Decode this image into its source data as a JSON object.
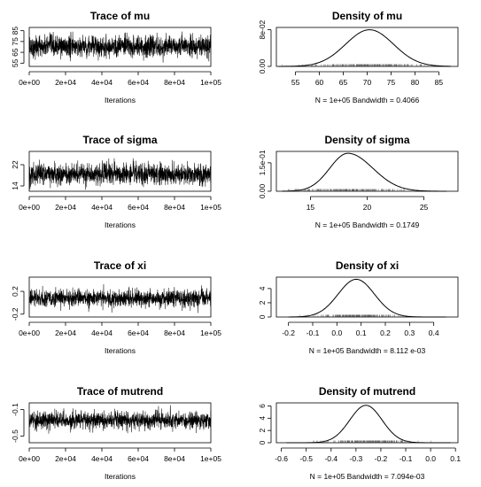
{
  "chart_data": [
    {
      "type": "line",
      "title": "Trace of mu",
      "xlabel": "Iterations",
      "ylabel": "",
      "xlim": [
        0,
        100000
      ],
      "ylim": [
        52,
        88
      ],
      "x_ticks": [
        0,
        20000,
        40000,
        60000,
        80000,
        100000
      ],
      "x_tick_labels": [
        "0e+00",
        "2e+04",
        "4e+04",
        "6e+04",
        "8e+04",
        "1e+05"
      ],
      "y_ticks": [
        55,
        65,
        75,
        85
      ],
      "y_tick_labels": [
        "55",
        "65",
        "75",
        "85"
      ],
      "series": [
        {
          "mean": 70.5,
          "sd": 5.0,
          "samples": 100000
        }
      ]
    },
    {
      "type": "line",
      "title": "Density of mu",
      "xlabel": "N = 1e+05    Bandwidth = 0.4066",
      "ylabel": "",
      "xlim": [
        51,
        89
      ],
      "ylim": [
        0,
        0.085
      ],
      "x_ticks": [
        55,
        60,
        65,
        70,
        75,
        80,
        85
      ],
      "x_tick_labels": [
        "55",
        "60",
        "65",
        "70",
        "75",
        "80",
        "85"
      ],
      "y_ticks": [
        0,
        0.08
      ],
      "y_tick_labels": [
        "0.00",
        "8e-02"
      ],
      "series": [
        {
          "mean": 70.5,
          "sd": 5.0,
          "peak": 0.08,
          "support": [
            51.5,
            87.5
          ]
        }
      ]
    },
    {
      "type": "line",
      "title": "Trace of sigma",
      "xlabel": "Iterations",
      "ylabel": "",
      "xlim": [
        0,
        100000
      ],
      "ylim": [
        12,
        27
      ],
      "x_ticks": [
        0,
        20000,
        40000,
        60000,
        80000,
        100000
      ],
      "x_tick_labels": [
        "0e+00",
        "2e+04",
        "4e+04",
        "6e+04",
        "8e+04",
        "1e+05"
      ],
      "y_ticks": [
        14,
        22
      ],
      "y_tick_labels": [
        "14",
        "22"
      ],
      "series": [
        {
          "mean": 18.5,
          "sd": 2.0,
          "samples": 100000
        }
      ]
    },
    {
      "type": "line",
      "title": "Density of sigma",
      "xlabel": "N = 1e+05    Bandwidth = 0.1749",
      "ylabel": "",
      "xlim": [
        12,
        28
      ],
      "ylim": [
        0,
        0.21
      ],
      "x_ticks": [
        15,
        20,
        25
      ],
      "x_tick_labels": [
        "15",
        "20",
        "25"
      ],
      "y_ticks": [
        0,
        0.15
      ],
      "y_tick_labels": [
        "0.00",
        "1.5e-01"
      ],
      "series": [
        {
          "mode": 18.3,
          "sd_left": 1.6,
          "sd_right": 2.2,
          "peak": 0.2,
          "support": [
            12.5,
            27
          ]
        }
      ]
    },
    {
      "type": "line",
      "title": "Trace of xi",
      "xlabel": "Iterations",
      "ylabel": "",
      "xlim": [
        0,
        100000
      ],
      "ylim": [
        -0.25,
        0.45
      ],
      "x_ticks": [
        0,
        20000,
        40000,
        60000,
        80000,
        100000
      ],
      "x_tick_labels": [
        "0e+00",
        "2e+04",
        "4e+04",
        "6e+04",
        "8e+04",
        "1e+05"
      ],
      "y_ticks": [
        -0.2,
        0.2
      ],
      "y_tick_labels": [
        "-0.2",
        "0.2"
      ],
      "series": [
        {
          "mean": 0.08,
          "sd": 0.075,
          "samples": 100000
        }
      ]
    },
    {
      "type": "line",
      "title": "Density of xi",
      "xlabel": "N = 1e+05    Bandwidth = 8.112 e-03",
      "ylabel": "",
      "xlim": [
        -0.25,
        0.5
      ],
      "ylim": [
        0,
        5.6
      ],
      "x_ticks": [
        -0.2,
        -0.1,
        0.0,
        0.1,
        0.2,
        0.3,
        0.4
      ],
      "x_tick_labels": [
        "-0.2",
        "-0.1",
        "0.0",
        "0.1",
        "0.2",
        "0.3",
        "0.4"
      ],
      "y_ticks": [
        0,
        2,
        4
      ],
      "y_tick_labels": [
        "0",
        "2",
        "4"
      ],
      "series": [
        {
          "mean": 0.08,
          "sd": 0.075,
          "peak": 5.3,
          "support": [
            -0.2,
            0.45
          ]
        }
      ]
    },
    {
      "type": "line",
      "title": "Trace of mutrend",
      "xlabel": "Iterations",
      "ylabel": "",
      "xlim": [
        0,
        100000
      ],
      "ylim": [
        -0.6,
        0.0
      ],
      "x_ticks": [
        0,
        20000,
        40000,
        60000,
        80000,
        100000
      ],
      "x_tick_labels": [
        "0e+00",
        "2e+04",
        "4e+04",
        "6e+04",
        "8e+04",
        "1e+05"
      ],
      "y_ticks": [
        -0.5,
        -0.1
      ],
      "y_tick_labels": [
        "-0.5",
        "-0.1"
      ],
      "series": [
        {
          "mean": -0.26,
          "sd": 0.065,
          "samples": 100000
        }
      ]
    },
    {
      "type": "line",
      "title": "Density of mutrend",
      "xlabel": "N = 1e+05    Bandwidth = 7.094e-03",
      "ylabel": "",
      "xlim": [
        -0.62,
        0.11
      ],
      "ylim": [
        0,
        6.5
      ],
      "x_ticks": [
        -0.6,
        -0.5,
        -0.4,
        -0.3,
        -0.2,
        -0.1,
        0.0,
        0.1
      ],
      "x_tick_labels": [
        "-0.6",
        "-0.5",
        "-0.4",
        "-0.3",
        "-0.2",
        "-0.1",
        "0.0",
        "0.1"
      ],
      "y_ticks": [
        0,
        2,
        4,
        6
      ],
      "y_tick_labels": [
        "0",
        "2",
        "4",
        "6"
      ],
      "series": [
        {
          "mean": -0.26,
          "sd": 0.065,
          "peak": 6.1,
          "support": [
            -0.58,
            0.08
          ]
        }
      ]
    }
  ]
}
